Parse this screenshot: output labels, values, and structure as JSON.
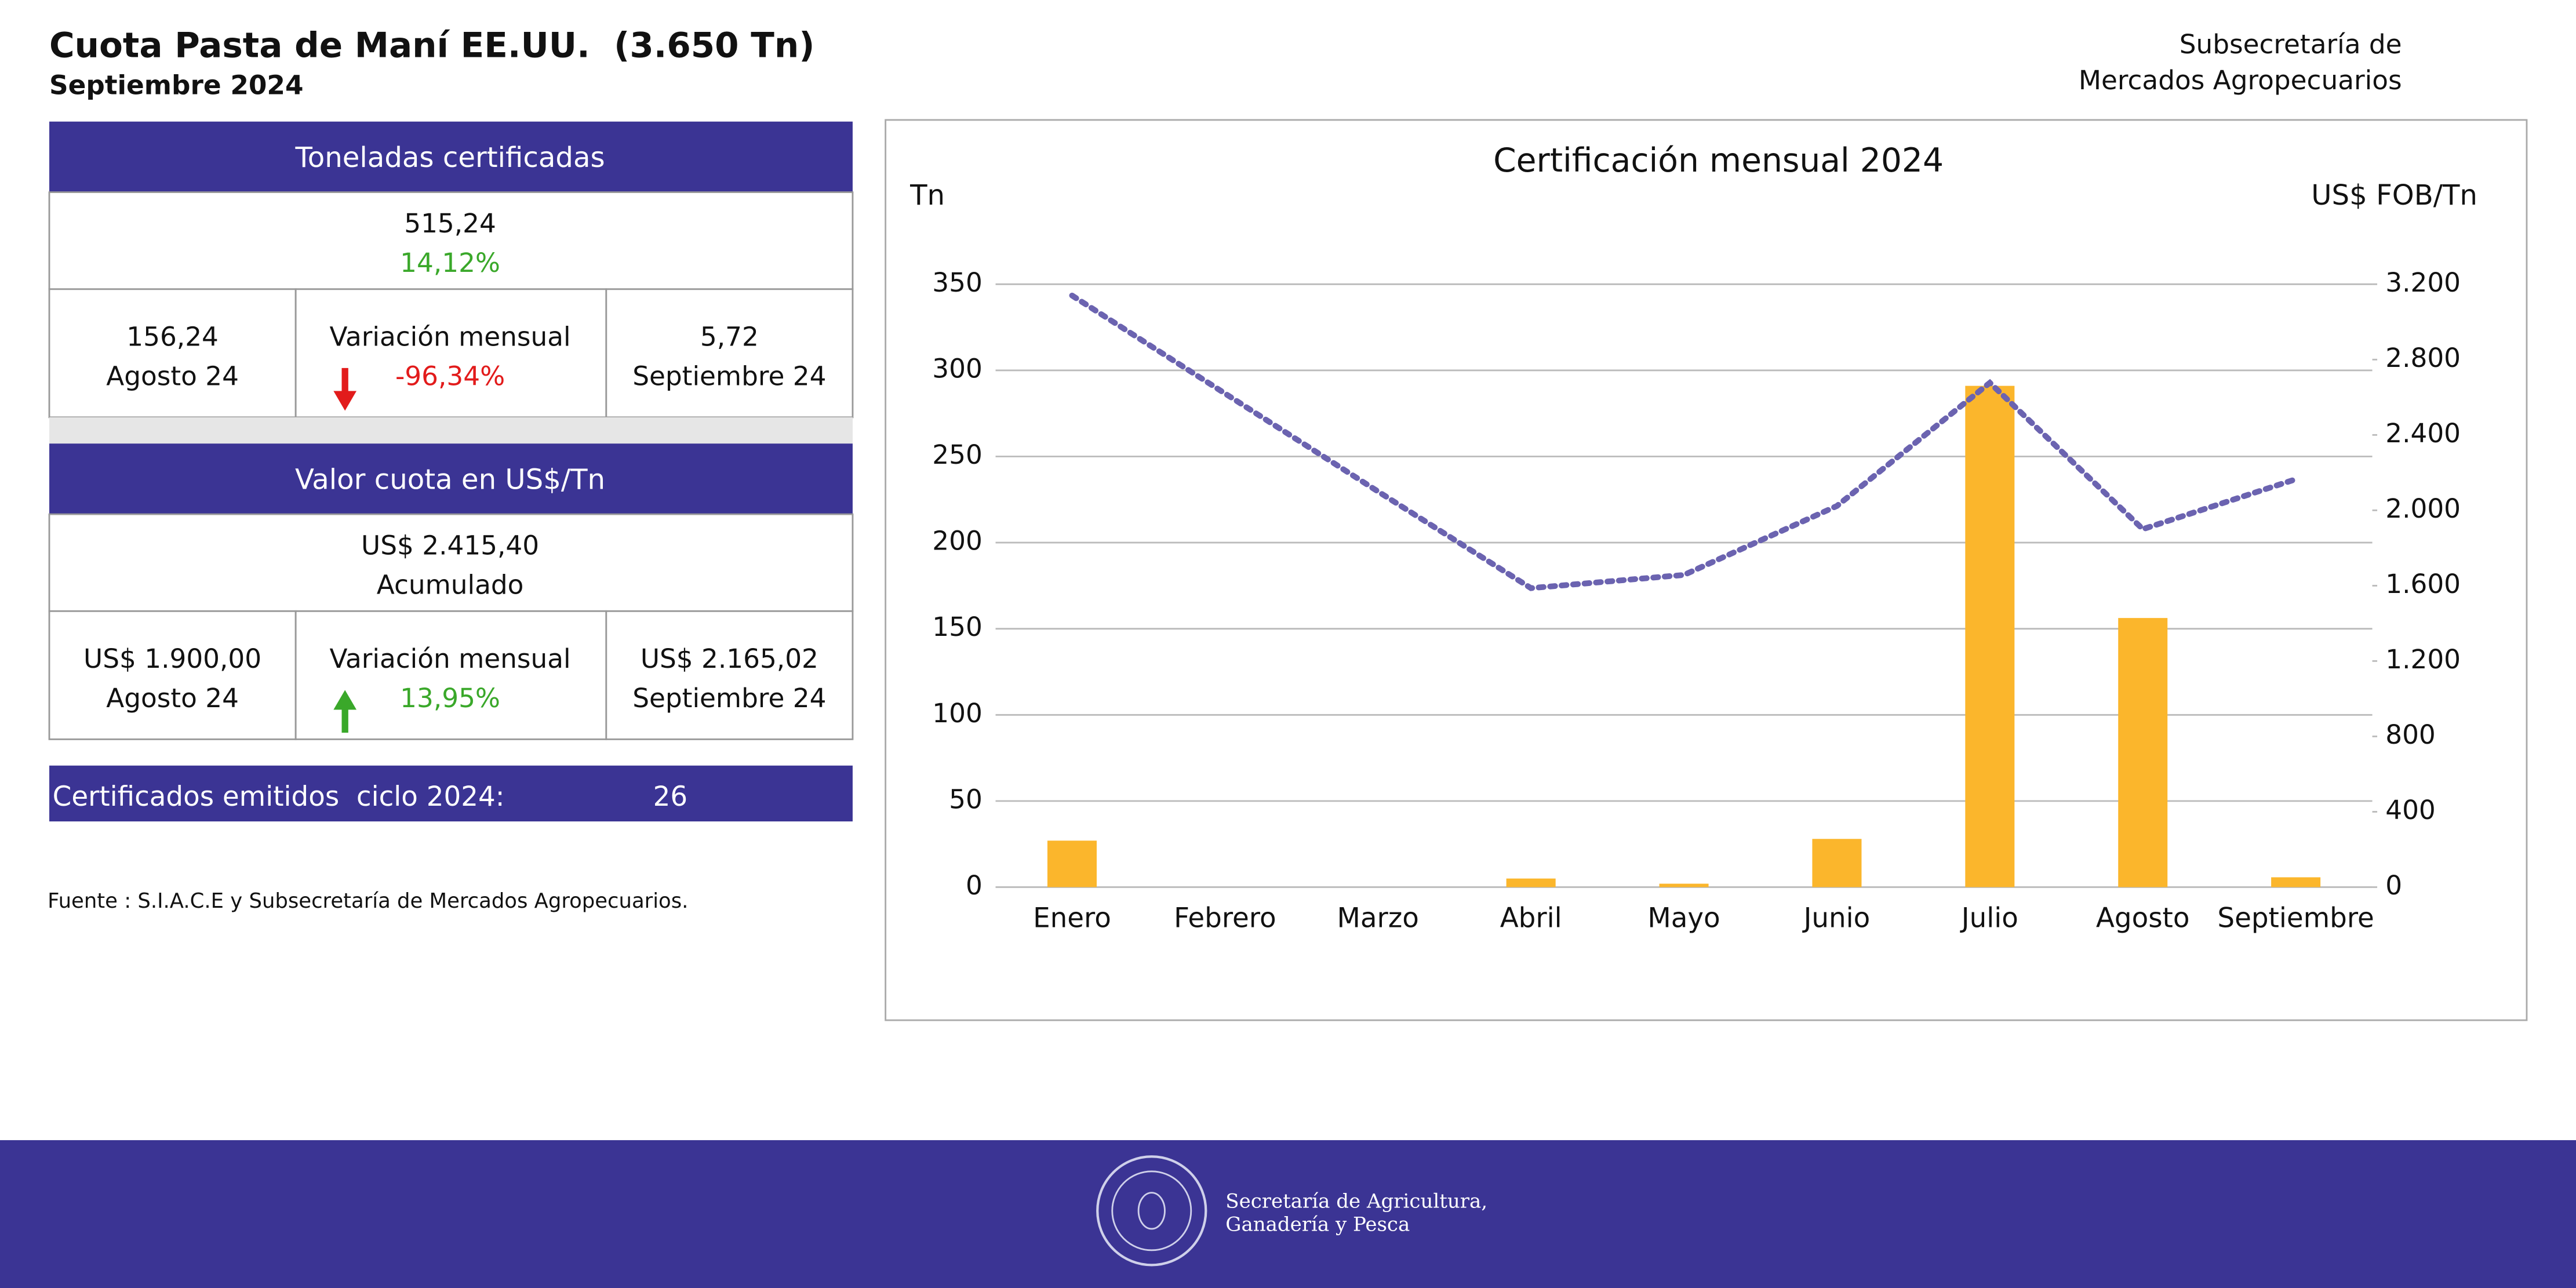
{
  "header": {
    "title": "Cuota Pasta de Maní EE.UU.  (3.650 Tn)",
    "subtitle": "Septiembre 2024",
    "org_lines": [
      "Subsecretaría de",
      "Mercados Agropecuarios"
    ]
  },
  "tonnage": {
    "heading": "Toneladas certificadas",
    "total": "515,24",
    "share": "14,12%",
    "prev_value": "156,24",
    "prev_label": "Agosto 24",
    "variation_label": "Variación mensual",
    "variation": "-96,34%",
    "curr_value": "5,72",
    "curr_label": "Septiembre 24"
  },
  "price": {
    "heading": "Valor cuota en US$/Tn",
    "total": "US$ 2.415,40",
    "total_label": "Acumulado",
    "prev_value": "US$ 1.900,00",
    "prev_label": "Agosto 24",
    "variation_label": "Variación mensual",
    "variation": "13,95%",
    "curr_value": "US$ 2.165,02",
    "curr_label": "Septiembre 24"
  },
  "certificates": {
    "label": "Certificados emitidos  ciclo 2024:",
    "value": "26"
  },
  "source": "Fuente : S.I.A.C.E y Subsecretaría de Mercados Agropecuarios.",
  "footer": {
    "lines": [
      "Secretaría de Agricultura,",
      "Ganadería y Pesca"
    ]
  },
  "chart_data": {
    "type": "bar",
    "title": "Certificación mensual 2024",
    "y_label": "Tn",
    "y2_label": "US$ FOB/Tn",
    "categories": [
      "Enero",
      "Febrero",
      "Marzo",
      "Abril",
      "Mayo",
      "Junio",
      "Julio",
      "Agosto",
      "Septiembre"
    ],
    "series": [
      {
        "name": "Tn",
        "type": "bar",
        "color": "#fbb62c",
        "values": [
          27,
          0,
          0,
          5,
          2,
          28,
          291,
          156.24,
          5.72
        ]
      },
      {
        "name": "US$ FOB/Tn",
        "type": "line",
        "axis": "y2",
        "color": "#6b63b0",
        "values": [
          3140,
          2620,
          2100,
          1587,
          1657,
          2023,
          2677,
          1900,
          2165.02
        ]
      }
    ],
    "ylim": [
      0,
      350
    ],
    "yticks": [
      0,
      50,
      100,
      150,
      200,
      250,
      300,
      350
    ],
    "y2lim": [
      0,
      3200
    ],
    "y2ticks": [
      0,
      {
        "value": 400,
        "label": "400"
      },
      {
        "value": 800,
        "label": "800"
      },
      {
        "value": 1200,
        "label": "1.200"
      },
      {
        "value": 1600,
        "label": "1.600"
      },
      {
        "value": 2000,
        "label": "2.000"
      },
      {
        "value": 2400,
        "label": "2.400"
      },
      {
        "value": 2800,
        "label": "2.800"
      },
      {
        "value": 3200,
        "label": "3.200"
      }
    ],
    "grid": true
  }
}
